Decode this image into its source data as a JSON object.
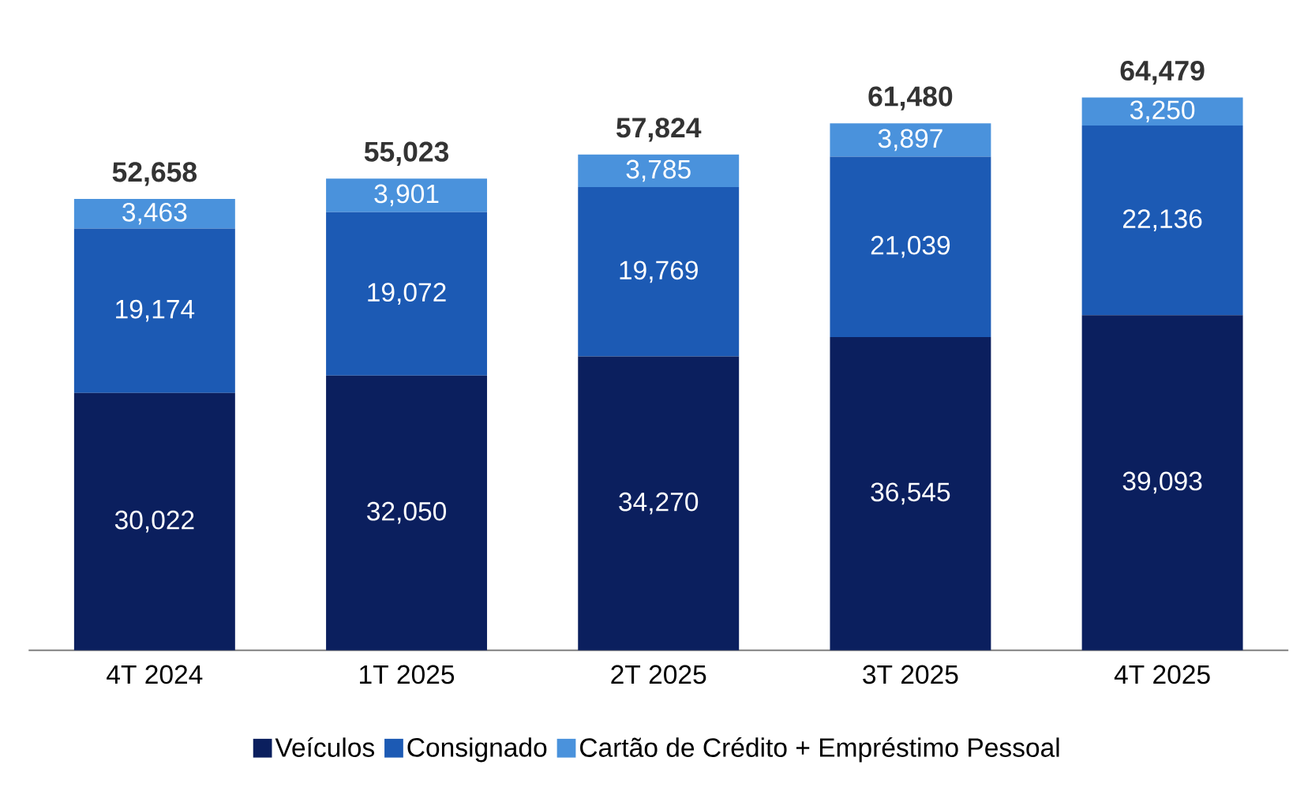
{
  "chart_data": {
    "type": "bar",
    "stacked": true,
    "categories": [
      "4T 2024",
      "1T 2025",
      "2T 2025",
      "3T 2025",
      "4T 2025"
    ],
    "series": [
      {
        "name": "Veículos",
        "color": "#0b1f5e",
        "values": [
          30022,
          32050,
          34270,
          36545,
          39093
        ],
        "value_labels": [
          "30,022",
          "32,050",
          "34,270",
          "36,545",
          "39,093"
        ]
      },
      {
        "name": "Consignado",
        "color": "#1c5ab4",
        "values": [
          19174,
          19072,
          19769,
          21039,
          22136
        ],
        "value_labels": [
          "19,174",
          "19,072",
          "19,769",
          "21,039",
          "22,136"
        ]
      },
      {
        "name": "Cartão de Crédito + Empréstimo Pessoal",
        "color": "#4a92dc",
        "values": [
          3463,
          3901,
          3785,
          3897,
          3250
        ],
        "value_labels": [
          "3,463",
          "3,901",
          "3,785",
          "3,897",
          "3,250"
        ]
      }
    ],
    "totals": [
      "52,658",
      "55,023",
      "57,824",
      "61,480",
      "64,479"
    ],
    "legend": "bottom",
    "grid": false,
    "tick_labels": "x"
  }
}
